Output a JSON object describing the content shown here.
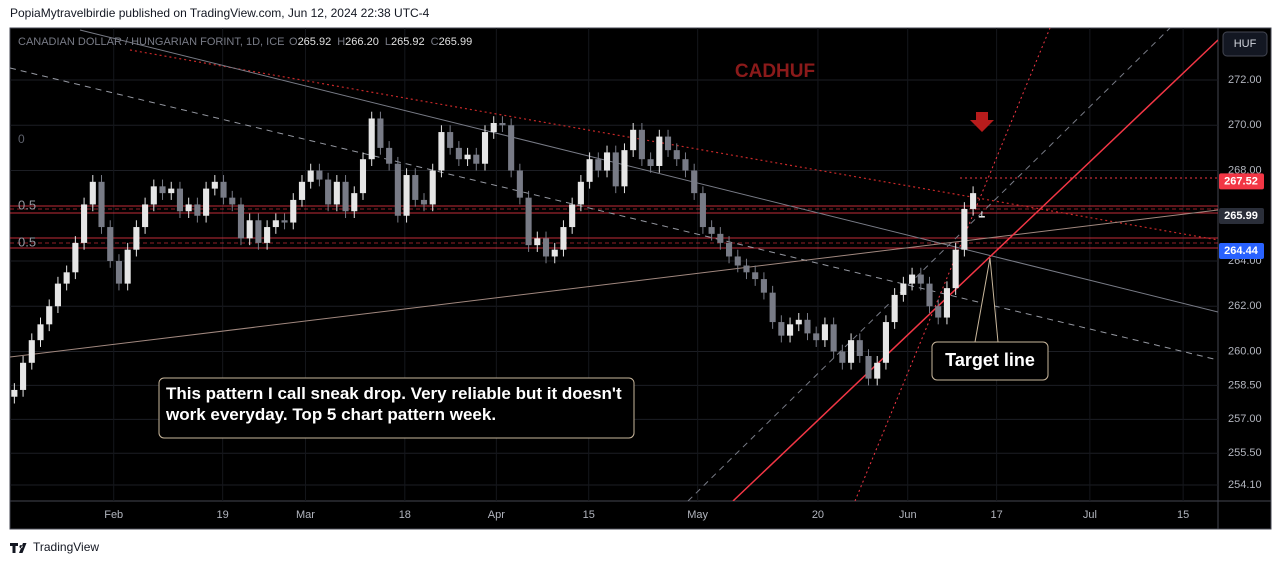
{
  "chart_data": {
    "type": "candlestick",
    "published": "PopiaMytravelbirdie published on TradingView.com, Jun 12, 2024 22:38 UTC-4",
    "brand": "TradingView",
    "legend": {
      "symbol": "CANADIAN DOLLAR / HUNGARIAN FORINT, 1D, ICE",
      "o": "O",
      "open": "265.92",
      "h": "H",
      "high": "266.20",
      "l": "L",
      "low": "265.92",
      "c": "C",
      "close": "265.99"
    },
    "title": "CADHUF",
    "currency": "HUF",
    "annotation": "This pattern I call sneak drop.  Very reliable but it doesn't work everyday. Top 5 chart pattern week.",
    "callout": "Target line",
    "fib_labels": [
      "0",
      "0.5",
      "0.5"
    ],
    "up_color": "#e6e6e6",
    "down_color": "#787b86",
    "open": [
      258.0,
      258.3,
      259.5,
      260.5,
      261.2,
      262.0,
      263.0,
      263.5,
      264.8,
      266.5,
      267.5,
      265.5,
      264.0,
      263.0,
      264.5,
      265.5,
      266.5,
      267.3,
      267.0,
      267.2,
      266.2,
      266.5,
      266.0,
      267.2,
      267.5,
      266.8,
      266.5,
      265.0,
      265.8,
      264.8,
      265.5,
      265.8,
      265.7,
      266.7,
      267.5,
      268.0,
      267.6,
      266.5,
      267.5,
      266.2,
      267.0,
      268.5,
      270.3,
      269.0,
      268.3,
      266.0,
      267.8,
      266.7,
      266.5,
      268.0,
      269.7,
      269.0,
      268.5,
      268.7,
      268.3,
      269.7,
      270.1,
      270.0,
      268.0,
      266.8,
      264.7,
      265.0,
      264.2,
      264.5,
      265.5,
      266.5,
      267.5,
      268.5,
      268.0,
      268.8,
      267.3,
      268.9,
      269.8,
      268.5,
      268.2,
      269.5,
      268.9,
      268.5,
      268.0,
      267.0,
      265.5,
      265.2,
      264.8,
      264.2,
      263.8,
      263.5,
      263.2,
      262.6,
      261.3,
      260.7,
      261.2,
      261.4,
      260.8,
      260.5,
      261.2,
      260.0,
      259.5,
      260.5,
      259.8,
      258.8,
      259.5,
      261.3,
      262.5,
      263.0,
      263.4,
      263.0,
      262.0,
      261.5,
      262.8,
      264.5,
      266.3,
      265.92
    ],
    "high": [
      258.6,
      259.8,
      260.8,
      261.5,
      262.3,
      263.3,
      263.8,
      265.1,
      266.8,
      267.8,
      267.8,
      265.8,
      264.3,
      264.8,
      265.8,
      266.8,
      267.6,
      267.6,
      267.5,
      267.5,
      266.8,
      266.8,
      267.5,
      267.8,
      267.8,
      267.1,
      266.8,
      266.1,
      266.1,
      265.8,
      266.1,
      266.1,
      267.0,
      267.8,
      268.3,
      268.3,
      267.9,
      267.8,
      267.8,
      267.3,
      268.8,
      270.6,
      270.6,
      269.3,
      268.6,
      268.1,
      268.1,
      267.0,
      268.3,
      270.0,
      270.0,
      269.3,
      269.0,
      269.0,
      270.0,
      270.4,
      270.4,
      270.3,
      268.3,
      267.1,
      265.3,
      265.3,
      264.8,
      265.8,
      266.8,
      267.8,
      268.8,
      268.8,
      269.1,
      269.1,
      269.2,
      270.1,
      270.1,
      268.8,
      269.8,
      269.8,
      269.2,
      268.8,
      268.3,
      267.3,
      265.8,
      265.5,
      265.1,
      264.5,
      264.1,
      263.8,
      263.5,
      262.9,
      261.6,
      261.5,
      261.7,
      261.7,
      261.1,
      261.5,
      261.5,
      260.3,
      260.8,
      260.8,
      260.1,
      259.8,
      261.6,
      262.8,
      263.3,
      263.7,
      263.7,
      263.3,
      262.3,
      263.1,
      264.8,
      266.6,
      267.3,
      266.2
    ],
    "low": [
      257.7,
      258.0,
      259.2,
      260.2,
      260.9,
      261.7,
      262.7,
      263.2,
      264.5,
      266.2,
      265.2,
      263.7,
      262.7,
      262.7,
      264.2,
      265.2,
      266.2,
      266.7,
      266.7,
      265.9,
      265.9,
      265.7,
      265.7,
      266.9,
      266.5,
      266.2,
      264.7,
      264.7,
      264.5,
      264.5,
      265.2,
      265.4,
      265.4,
      266.4,
      267.2,
      267.3,
      266.2,
      266.2,
      265.9,
      265.9,
      266.7,
      268.2,
      268.7,
      268.0,
      265.7,
      265.7,
      266.4,
      266.2,
      266.2,
      267.7,
      268.7,
      268.2,
      268.2,
      268.0,
      268.0,
      269.4,
      269.7,
      267.7,
      266.5,
      264.4,
      264.4,
      263.9,
      263.9,
      264.2,
      265.2,
      266.2,
      267.2,
      267.7,
      267.7,
      267.0,
      267.0,
      268.6,
      268.2,
      267.9,
      267.9,
      268.6,
      268.2,
      267.7,
      266.7,
      265.2,
      264.9,
      264.5,
      263.9,
      263.5,
      263.2,
      262.9,
      262.3,
      261.0,
      260.4,
      260.4,
      260.9,
      260.5,
      260.2,
      260.2,
      259.7,
      259.2,
      259.2,
      259.5,
      258.5,
      258.5,
      259.2,
      261.0,
      262.2,
      262.7,
      262.7,
      261.7,
      261.2,
      261.2,
      262.5,
      264.2,
      266.0,
      265.92
    ],
    "close": [
      258.3,
      259.5,
      260.5,
      261.2,
      262.0,
      263.0,
      263.5,
      264.8,
      266.5,
      267.5,
      265.5,
      264.0,
      263.0,
      264.5,
      265.5,
      266.5,
      267.3,
      267.0,
      267.2,
      266.2,
      266.5,
      266.0,
      267.2,
      267.5,
      266.8,
      266.5,
      265.0,
      265.8,
      264.8,
      265.5,
      265.8,
      265.7,
      266.7,
      267.5,
      268.0,
      267.6,
      266.5,
      267.5,
      266.2,
      267.0,
      268.5,
      270.3,
      269.0,
      268.3,
      266.0,
      267.8,
      266.7,
      266.5,
      268.0,
      269.7,
      269.0,
      268.5,
      268.7,
      268.3,
      269.7,
      270.1,
      270.0,
      268.0,
      266.8,
      264.7,
      265.0,
      264.2,
      264.5,
      265.5,
      266.5,
      267.5,
      268.5,
      268.0,
      268.8,
      267.3,
      268.9,
      269.8,
      268.5,
      268.2,
      269.5,
      268.9,
      268.5,
      268.0,
      267.0,
      265.5,
      265.2,
      264.8,
      264.2,
      263.8,
      263.5,
      263.2,
      262.6,
      261.3,
      260.7,
      261.2,
      261.4,
      260.8,
      260.5,
      261.2,
      260.0,
      259.5,
      260.5,
      259.8,
      258.8,
      259.5,
      261.3,
      262.5,
      263.0,
      263.4,
      263.0,
      262.0,
      261.5,
      262.8,
      264.5,
      266.3,
      267.0,
      265.99
    ],
    "xlim": [
      -0.5,
      138.1
    ],
    "xticks": [
      {
        "value": 11.4,
        "label": "Feb"
      },
      {
        "value": 23.9,
        "label": "19"
      },
      {
        "value": 33.4,
        "label": "Mar"
      },
      {
        "value": 44.8,
        "label": "18"
      },
      {
        "value": 55.3,
        "label": "Apr"
      },
      {
        "value": 65.9,
        "label": "15"
      },
      {
        "value": 78.4,
        "label": "May"
      },
      {
        "value": 92.2,
        "label": "20"
      },
      {
        "value": 102.5,
        "label": "Jun"
      },
      {
        "value": 112.7,
        "label": "17"
      },
      {
        "value": 123.4,
        "label": "Jul"
      },
      {
        "value": 134.1,
        "label": "15"
      }
    ],
    "ylim": [
      253.39,
      274.3
    ],
    "yticks": [
      {
        "value": 272,
        "label": "272.00"
      },
      {
        "value": 270,
        "label": "270.00"
      },
      {
        "value": 268,
        "label": "268.00"
      },
      {
        "value": 264,
        "label": "264.00"
      },
      {
        "value": 262,
        "label": "262.00"
      },
      {
        "value": 260,
        "label": "260.00"
      },
      {
        "value": 258.5,
        "label": "258.50"
      },
      {
        "value": 257,
        "label": "257.00"
      },
      {
        "value": 255.5,
        "label": "255.50"
      },
      {
        "value": 254.1,
        "label": "254.10"
      }
    ],
    "price_labels": [
      {
        "value": 267.52,
        "color": "#f23645"
      },
      {
        "value": 265.99,
        "color": "#2a2e39"
      },
      {
        "value": 264.44,
        "color": "#2962ff"
      }
    ],
    "grid": true
  }
}
